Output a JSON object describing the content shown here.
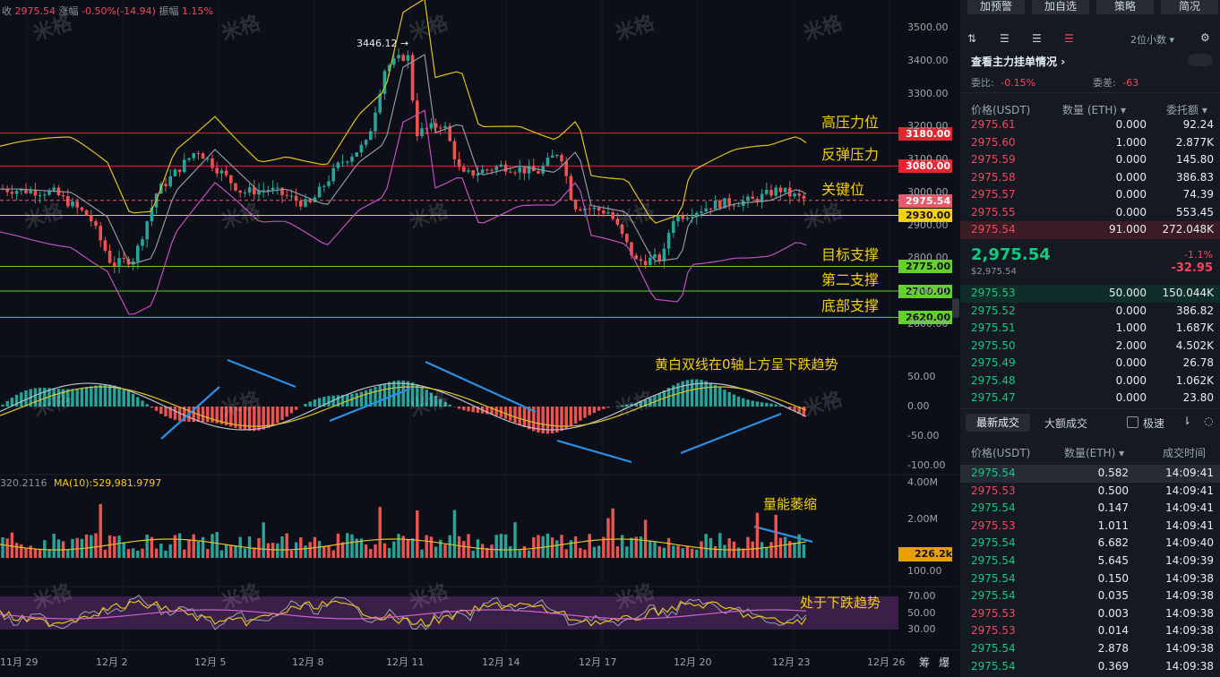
{
  "header": {
    "close_label": "收",
    "close_value": "2975.54",
    "change_label": "涨幅",
    "change_value": "-0.50%(-14.94)",
    "amp_label": "振幅",
    "amp_value": "1.15%"
  },
  "watermark": "米格",
  "price_axis": [
    "3500.00",
    "3400.00",
    "3300.00",
    "3200.00",
    "3100.00",
    "3000.00",
    "2900.00",
    "2800.00",
    "2700.00",
    "2600.00"
  ],
  "macd_axis": [
    "50.00",
    "0.00",
    "-50.00",
    "-100.00"
  ],
  "vol_axis": [
    "4.00M",
    "2.00M",
    "100.00"
  ],
  "rsi_axis": [
    "70.00",
    "50.00",
    "30.00"
  ],
  "x_axis": [
    "11月 29",
    "12月 2",
    "12月 5",
    "12月 8",
    "12月 11",
    "12月 14",
    "12月 17",
    "12月 20",
    "12月 23",
    "12月 26"
  ],
  "price_tags": [
    {
      "value": "3180.00",
      "label": "高压力位",
      "color": "#e3262f",
      "text_color": "#ffffff"
    },
    {
      "value": "3080.00",
      "label": "反弹压力",
      "color": "#e3262f",
      "text_color": "#ffffff"
    },
    {
      "value": "2975.54",
      "label": "关键位",
      "color": "#e55b6a",
      "text_color": "#ffffff"
    },
    {
      "value": "2930.00",
      "label": "",
      "color": "#f5d000",
      "text_color": "#111111"
    },
    {
      "value": "2775.00",
      "label": "目标支撑",
      "color": "#62d12a",
      "text_color": "#111111"
    },
    {
      "value": "2700.00",
      "label": "第二支撑",
      "color": "#62d12a",
      "text_color": "#111111"
    },
    {
      "value": "2620.00",
      "label": "底部支撑",
      "color": "#62d12a",
      "text_color": "#111111"
    }
  ],
  "peak_label": "3446.12",
  "macd_note": "黄白双线在0轴上方呈下跌趋势",
  "volume_note": "量能萎缩",
  "rsi_note": "处于下跌趋势",
  "volume_header": {
    "left": "320.2116",
    "ma_label": "MA(10):529,981.9797"
  },
  "volume_tag": "226.2k",
  "footer_icons": {
    "a": "筹",
    "b": "爆"
  },
  "right": {
    "buttons": [
      "加预警",
      "加自选",
      "策略",
      "简况"
    ],
    "decimal_label": "2位小数",
    "depth_title": "查看主力挂单情况",
    "ratio_label": "委比:",
    "ratio_value": "-0.15%",
    "diff_label": "委差:",
    "diff_value": "-63",
    "book_headers": [
      "价格(USDT)",
      "数量 (ETH)",
      "委托额"
    ],
    "asks": [
      [
        "2975.61",
        "0.000",
        "92.24"
      ],
      [
        "2975.60",
        "1.000",
        "2.877K"
      ],
      [
        "2975.59",
        "0.000",
        "145.80"
      ],
      [
        "2975.58",
        "0.000",
        "386.83"
      ],
      [
        "2975.57",
        "0.000",
        "74.39"
      ],
      [
        "2975.55",
        "0.000",
        "553.45"
      ],
      [
        "2975.54",
        "91.000",
        "272.048K"
      ]
    ],
    "last_price": "2,975.54",
    "last_usd": "$2,975.54",
    "last_pct": "-1.1%",
    "last_change": "-32.95",
    "bids": [
      [
        "2975.53",
        "50.000",
        "150.044K"
      ],
      [
        "2975.52",
        "0.000",
        "386.82"
      ],
      [
        "2975.51",
        "1.000",
        "1.687K"
      ],
      [
        "2975.50",
        "2.000",
        "4.502K"
      ],
      [
        "2975.49",
        "0.000",
        "26.78"
      ],
      [
        "2975.48",
        "0.000",
        "1.062K"
      ],
      [
        "2975.47",
        "0.000",
        "23.80"
      ]
    ],
    "tabs": [
      "最新成交",
      "大额成交"
    ],
    "fast_label": "极速",
    "trade_headers": [
      "价格(USDT)",
      "数量(ETH)",
      "成交时间"
    ],
    "trades": [
      [
        "2975.54",
        "0.582",
        "14:09:41",
        "green"
      ],
      [
        "2975.53",
        "0.500",
        "14:09:41",
        "red"
      ],
      [
        "2975.54",
        "0.147",
        "14:09:41",
        "green"
      ],
      [
        "2975.53",
        "1.011",
        "14:09:41",
        "red"
      ],
      [
        "2975.54",
        "6.682",
        "14:09:40",
        "green"
      ],
      [
        "2975.54",
        "5.645",
        "14:09:39",
        "green"
      ],
      [
        "2975.54",
        "0.150",
        "14:09:38",
        "green"
      ],
      [
        "2975.54",
        "0.035",
        "14:09:38",
        "green"
      ],
      [
        "2975.53",
        "0.003",
        "14:09:38",
        "red"
      ],
      [
        "2975.53",
        "0.014",
        "14:09:38",
        "red"
      ],
      [
        "2975.54",
        "2.878",
        "14:09:38",
        "green"
      ],
      [
        "2975.54",
        "0.369",
        "14:09:38",
        "green"
      ]
    ]
  }
}
